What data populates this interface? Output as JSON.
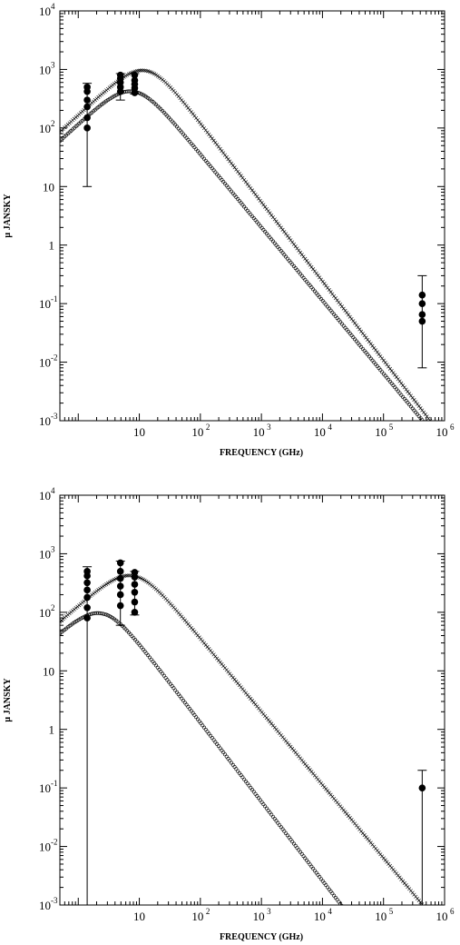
{
  "chart_data": [
    {
      "type": "scatter",
      "title": "",
      "xlabel": "FREQUENCY (GHz)",
      "ylabel": "μ JANSKY",
      "xscale": "log",
      "yscale": "log",
      "xlim": [
        0.5,
        1000000
      ],
      "ylim": [
        0.001,
        10000
      ],
      "x_ticks": [
        {
          "base": "",
          "exp": "",
          "text": "10"
        },
        {
          "base": "10",
          "exp": "2"
        },
        {
          "base": "10",
          "exp": "3"
        },
        {
          "base": "10",
          "exp": "4"
        },
        {
          "base": "10",
          "exp": "5"
        },
        {
          "base": "10",
          "exp": "6"
        }
      ],
      "y_ticks": [
        {
          "base": "10",
          "exp": "-3"
        },
        {
          "base": "10",
          "exp": "-2"
        },
        {
          "base": "10",
          "exp": "-1"
        },
        {
          "base": "",
          "exp": "",
          "text": "1"
        },
        {
          "base": "",
          "exp": "",
          "text": "10"
        },
        {
          "base": "10",
          "exp": "2"
        },
        {
          "base": "10",
          "exp": "3"
        },
        {
          "base": "10",
          "exp": "4"
        }
      ],
      "series": [
        {
          "marker": "cross",
          "peak_freq": 13,
          "peak_flux": 950,
          "low_slope": 0.95,
          "high_slope": 1.35
        },
        {
          "marker": "circle",
          "peak_freq": 8,
          "peak_flux": 420,
          "low_slope": 0.95,
          "high_slope": 1.25
        }
      ],
      "points": [
        {
          "x": 1.4,
          "y": [
            100,
            150,
            230,
            300,
            420,
            500
          ],
          "err_low": 10,
          "err_high": 580
        },
        {
          "x": 4.9,
          "y": [
            420,
            500,
            600,
            700,
            800
          ],
          "err_low": 300,
          "err_high": 850
        },
        {
          "x": 8.4,
          "y": [
            400,
            480,
            560,
            650,
            800
          ],
          "err_low": 380,
          "err_high": 850
        },
        {
          "x": 430000,
          "y": [
            0.05,
            0.065,
            0.1,
            0.14
          ],
          "err_low": 0.008,
          "err_high": 0.3
        }
      ]
    },
    {
      "type": "scatter",
      "title": "",
      "xlabel": "FREQUENCY (GHz)",
      "ylabel": "μ JANSKY",
      "xscale": "log",
      "yscale": "log",
      "xlim": [
        0.5,
        1000000
      ],
      "ylim": [
        0.001,
        10000
      ],
      "x_ticks": [
        {
          "base": "",
          "exp": "",
          "text": "10"
        },
        {
          "base": "10",
          "exp": "2"
        },
        {
          "base": "10",
          "exp": "3"
        },
        {
          "base": "10",
          "exp": "4"
        },
        {
          "base": "10",
          "exp": "5"
        },
        {
          "base": "10",
          "exp": "6"
        }
      ],
      "y_ticks": [
        {
          "base": "10",
          "exp": "-3"
        },
        {
          "base": "10",
          "exp": "-2"
        },
        {
          "base": "10",
          "exp": "-1"
        },
        {
          "base": "",
          "exp": "",
          "text": "1"
        },
        {
          "base": "",
          "exp": "",
          "text": "10"
        },
        {
          "base": "10",
          "exp": "2"
        },
        {
          "base": "10",
          "exp": "3"
        },
        {
          "base": "10",
          "exp": "4"
        }
      ],
      "series": [
        {
          "marker": "cross",
          "peak_freq": 8,
          "peak_flux": 420,
          "low_slope": 0.9,
          "high_slope": 1.25
        },
        {
          "marker": "circle",
          "peak_freq": 2.5,
          "peak_flux": 95,
          "low_slope": 0.9,
          "high_slope": 1.35
        }
      ],
      "points": [
        {
          "x": 1.4,
          "y": [
            80,
            120,
            180,
            240,
            320,
            420,
            500
          ],
          "err_low": 0.001,
          "err_high": 600
        },
        {
          "x": 4.9,
          "y": [
            130,
            200,
            280,
            380,
            500,
            700
          ],
          "err_low": 60,
          "err_high": 750
        },
        {
          "x": 8.4,
          "y": [
            100,
            150,
            220,
            300,
            400,
            480
          ],
          "err_low": 90,
          "err_high": 500
        },
        {
          "x": 430000,
          "y": [
            0.1
          ],
          "err_low": 0.001,
          "err_high": 0.2
        }
      ]
    }
  ]
}
